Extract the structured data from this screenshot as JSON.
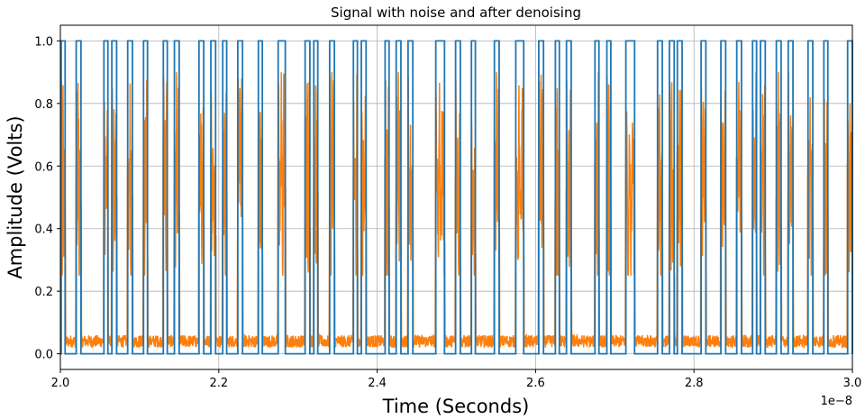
{
  "chart_data": {
    "type": "line",
    "title": "Signal with noise and after denoising",
    "xlabel": "Time (Seconds)",
    "ylabel": "Amplitude (Volts)",
    "x_offset_label": "1e−8",
    "xlim": [
      2.0,
      3.0
    ],
    "ylim": [
      -0.05,
      1.05
    ],
    "xticks": [
      "2.0",
      "2.2",
      "2.4",
      "2.6",
      "2.8",
      "3.0"
    ],
    "yticks": [
      "0.0",
      "0.2",
      "0.4",
      "0.6",
      "0.8",
      "1.0"
    ],
    "grid": true,
    "colors": {
      "signal": "#1f77b4",
      "denoised": "#ff7f0e"
    },
    "series": [
      {
        "kind": "square-pulses",
        "low": 0.0,
        "high": 1.0,
        "pulses": [
          [
            2.001,
            2.006
          ],
          [
            2.02,
            2.026
          ],
          [
            2.055,
            2.06
          ],
          [
            2.065,
            2.071
          ],
          [
            2.085,
            2.091
          ],
          [
            2.105,
            2.11
          ],
          [
            2.13,
            2.135
          ],
          [
            2.144,
            2.15
          ],
          [
            2.175,
            2.181
          ],
          [
            2.19,
            2.196
          ],
          [
            2.205,
            2.21
          ],
          [
            2.224,
            2.23
          ],
          [
            2.25,
            2.255
          ],
          [
            2.275,
            2.284
          ],
          [
            2.309,
            2.315
          ],
          [
            2.32,
            2.325
          ],
          [
            2.34,
            2.346
          ],
          [
            2.37,
            2.375
          ],
          [
            2.38,
            2.386
          ],
          [
            2.41,
            2.415
          ],
          [
            2.424,
            2.43
          ],
          [
            2.439,
            2.445
          ],
          [
            2.474,
            2.485
          ],
          [
            2.499,
            2.505
          ],
          [
            2.519,
            2.524
          ],
          [
            2.548,
            2.554
          ],
          [
            2.575,
            2.585
          ],
          [
            2.604,
            2.61
          ],
          [
            2.625,
            2.63
          ],
          [
            2.639,
            2.645
          ],
          [
            2.675,
            2.68
          ],
          [
            2.69,
            2.695
          ],
          [
            2.714,
            2.725
          ],
          [
            2.754,
            2.76
          ],
          [
            2.769,
            2.775
          ],
          [
            2.779,
            2.785
          ],
          [
            2.809,
            2.815
          ],
          [
            2.834,
            2.84
          ],
          [
            2.854,
            2.86
          ],
          [
            2.874,
            2.879
          ],
          [
            2.884,
            2.89
          ],
          [
            2.904,
            2.91
          ],
          [
            2.919,
            2.925
          ],
          [
            2.944,
            2.95
          ],
          [
            2.964,
            2.969
          ],
          [
            2.994,
            3.0
          ]
        ]
      },
      {
        "kind": "noisy-denoised",
        "baseline": 0.04,
        "baseline_noise": 0.02,
        "pulse_range": [
          0.25,
          0.85
        ],
        "peak_max": 0.9
      }
    ]
  }
}
